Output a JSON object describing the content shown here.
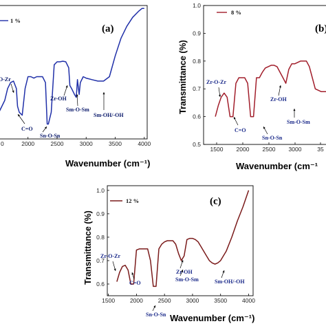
{
  "chart_data": [
    {
      "type": "line",
      "panel": "(a)",
      "color": "#1f2fa8",
      "series": [
        {
          "name": "1 %"
        }
      ],
      "xlabel": "Wavenumber (cm⁻¹)",
      "ylabel": "",
      "xticks": [
        "2000",
        "2500",
        "3000",
        "3500",
        "4000"
      ],
      "yticks": [],
      "x": [
        1400,
        1500,
        1600,
        1650,
        1700,
        1750,
        1800,
        1820,
        1850,
        1900,
        1950,
        2000,
        2050,
        2100,
        2150,
        2200,
        2250,
        2300,
        2330,
        2350,
        2400,
        2450,
        2500,
        2550,
        2600,
        2650,
        2700,
        2720,
        2750,
        2800,
        2830,
        2850,
        2880,
        2900,
        2950,
        3000,
        3100,
        3200,
        3300,
        3400,
        3500,
        3600,
        3700,
        3800,
        3900,
        3960,
        4000
      ],
      "y": [
        0.62,
        0.64,
        0.68,
        0.72,
        0.74,
        0.745,
        0.72,
        0.66,
        0.64,
        0.63,
        0.72,
        0.76,
        0.76,
        0.755,
        0.76,
        0.76,
        0.76,
        0.74,
        0.6,
        0.6,
        0.64,
        0.8,
        0.81,
        0.81,
        0.812,
        0.81,
        0.79,
        0.73,
        0.72,
        0.7,
        0.69,
        0.75,
        0.7,
        0.74,
        0.76,
        0.755,
        0.75,
        0.745,
        0.745,
        0.76,
        0.83,
        0.89,
        0.93,
        0.96,
        0.98,
        0.99,
        0.99
      ],
      "xlim": [
        1400,
        4050
      ],
      "ylim": [
        0.55,
        1.0
      ],
      "annotations": [
        {
          "text": "O-Zr",
          "x": 1750,
          "y": 0.78
        },
        {
          "text": "C=O",
          "x": 1900,
          "y": 0.56
        },
        {
          "text": "Sn-O-Sn",
          "x": 2360,
          "y": 0.55
        },
        {
          "text": "Zr-OH",
          "x": 2700,
          "y": 0.66
        },
        {
          "text": "Sm-O-Sm",
          "x": 2900,
          "y": 0.62
        },
        {
          "text": "Sm-OH/-OH",
          "x": 3400,
          "y": 0.6
        }
      ],
      "tick_prefix": "0"
    },
    {
      "type": "line",
      "panel": "(b)",
      "color": "#a11d2a",
      "series": [
        {
          "name": "8 %"
        }
      ],
      "xlabel": "Wavenumber (cm⁻¹",
      "ylabel": "Transmittance (%)",
      "xticks": [
        "1500",
        "2000",
        "2500",
        "3000",
        "35"
      ],
      "yticks": [
        "0.5",
        "0.6",
        "0.7",
        "0.8",
        "0.9",
        "1.0"
      ],
      "x": [
        1600,
        1650,
        1700,
        1750,
        1800,
        1850,
        1900,
        1950,
        2000,
        2050,
        2100,
        2150,
        2200,
        2250,
        2300,
        2350,
        2400,
        2450,
        2500,
        2550,
        2600,
        2650,
        2700,
        2750,
        2800,
        2850,
        2900,
        2950,
        3000,
        3050,
        3100,
        3150,
        3200,
        3250,
        3300,
        3400,
        3500,
        3550
      ],
      "y": [
        0.6,
        0.64,
        0.67,
        0.685,
        0.67,
        0.6,
        0.6,
        0.72,
        0.74,
        0.74,
        0.74,
        0.72,
        0.6,
        0.6,
        0.74,
        0.74,
        0.76,
        0.775,
        0.78,
        0.785,
        0.785,
        0.78,
        0.76,
        0.74,
        0.72,
        0.77,
        0.79,
        0.79,
        0.795,
        0.8,
        0.8,
        0.8,
        0.78,
        0.74,
        0.7,
        0.69,
        0.69,
        0.695
      ],
      "xlim": [
        1400,
        3600
      ],
      "ylim": [
        0.5,
        1.0
      ],
      "annotations": [
        {
          "text": "Zr-O-Zr",
          "x": 1700,
          "y": 0.755
        },
        {
          "text": "C=O",
          "x": 1870,
          "y": 0.57
        },
        {
          "text": "Sn-O-Sn",
          "x": 2300,
          "y": 0.54
        },
        {
          "text": "Zr-OH",
          "x": 2700,
          "y": 0.69
        },
        {
          "text": "Sm-O-Sm",
          "x": 3050,
          "y": 0.595
        }
      ]
    },
    {
      "type": "line",
      "panel": "(c)",
      "color": "#7a1a1a",
      "series": [
        {
          "name": "12 %"
        }
      ],
      "xlabel": "Wavenumber (cm⁻¹)",
      "ylabel": "Transmittance (%)",
      "xticks": [
        "1500",
        "2000",
        "2500",
        "3000",
        "3500",
        "4000"
      ],
      "yticks": [
        "0.6",
        "0.7",
        "0.8",
        "0.9",
        "1.0"
      ],
      "x": [
        1650,
        1700,
        1750,
        1800,
        1850,
        1900,
        1950,
        2000,
        2050,
        2100,
        2150,
        2200,
        2250,
        2300,
        2350,
        2400,
        2450,
        2500,
        2550,
        2600,
        2650,
        2700,
        2750,
        2800,
        2850,
        2900,
        2950,
        3000,
        3050,
        3100,
        3150,
        3200,
        3250,
        3300,
        3350,
        3400,
        3450,
        3500,
        3600,
        3700,
        3800,
        3900,
        4000
      ],
      "y": [
        0.61,
        0.65,
        0.675,
        0.68,
        0.66,
        0.6,
        0.6,
        0.745,
        0.75,
        0.75,
        0.75,
        0.75,
        0.7,
        0.59,
        0.59,
        0.75,
        0.77,
        0.78,
        0.785,
        0.785,
        0.785,
        0.77,
        0.73,
        0.7,
        0.72,
        0.79,
        0.795,
        0.795,
        0.79,
        0.78,
        0.76,
        0.74,
        0.72,
        0.7,
        0.69,
        0.685,
        0.69,
        0.7,
        0.74,
        0.8,
        0.87,
        0.93,
        1.0
      ],
      "xlim": [
        1480,
        4080
      ],
      "ylim": [
        0.55,
        1.02
      ],
      "annotations": [
        {
          "text": "Zr-O-Zr",
          "x": 1700,
          "y": 0.715
        },
        {
          "text": "C=O",
          "x": 1910,
          "y": 0.65
        },
        {
          "text": "Sn-O-Sn",
          "x": 2400,
          "y": 0.54
        },
        {
          "text": "Zr-OH",
          "x": 2840,
          "y": 0.67
        },
        {
          "text": "Sm-O-Sm",
          "x": 2880,
          "y": 0.645
        },
        {
          "text": "Sm-OH/-OH",
          "x": 3380,
          "y": 0.565
        }
      ]
    }
  ]
}
